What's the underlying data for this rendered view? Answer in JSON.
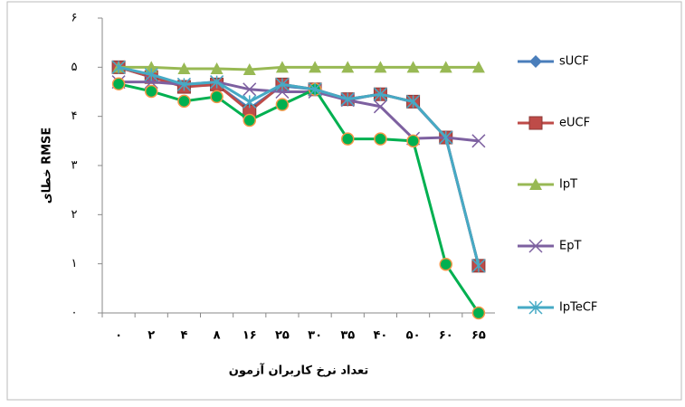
{
  "chart_data": {
    "type": "line",
    "ylabel": "خطای RMSE",
    "xlabel": "تعداد نرخ کاربران آزمون",
    "categories": [
      "۰",
      "۲",
      "۴",
      "۸",
      "۱۶",
      "۲۵",
      "۳۰",
      "۳۵",
      "۴۰",
      "۵۰",
      "۶۰",
      "۶۵"
    ],
    "ylim": [
      0,
      6
    ],
    "yticks": [
      {
        "value": 0,
        "label": "۰"
      },
      {
        "value": 1,
        "label": "۱"
      },
      {
        "value": 2,
        "label": "۲"
      },
      {
        "value": 3,
        "label": "۳"
      },
      {
        "value": 4,
        "label": "۴"
      },
      {
        "value": 5,
        "label": "۵"
      },
      {
        "value": 6,
        "label": "۶"
      }
    ],
    "series": [
      {
        "name": "sUCF",
        "color": "#4a7ebb",
        "marker": "diamond",
        "values": [
          5.0,
          4.8,
          4.62,
          4.64,
          4.16,
          4.62,
          4.55,
          4.33,
          4.46,
          4.29,
          3.57,
          0.96
        ]
      },
      {
        "name": "eUCF",
        "color": "#be4b48",
        "marker": "square",
        "values": [
          5.0,
          4.8,
          4.6,
          4.65,
          4.1,
          4.65,
          4.55,
          4.35,
          4.45,
          4.3,
          3.57,
          0.96
        ]
      },
      {
        "name": "IpT",
        "color": "#98b954",
        "marker": "triangle",
        "values": [
          5.0,
          5.0,
          4.97,
          4.97,
          4.95,
          5.0,
          5.0,
          5.0,
          5.0,
          5.0,
          5.0,
          5.0
        ]
      },
      {
        "name": "EpT",
        "color": "#7d60a0",
        "marker": "cross",
        "values": [
          4.7,
          4.7,
          4.65,
          4.7,
          4.55,
          4.5,
          4.5,
          4.33,
          4.2,
          3.55,
          3.57,
          3.5
        ]
      },
      {
        "color": "#00b050",
        "marker": "circle",
        "values": [
          4.66,
          4.51,
          4.31,
          4.4,
          3.92,
          4.24,
          4.55,
          3.54,
          3.54,
          3.5,
          0.99,
          0
        ]
      },
      {
        "name": "IpTeCF",
        "color": "#46aac5",
        "marker": "star",
        "values": [
          5.0,
          4.85,
          4.65,
          4.7,
          4.3,
          4.65,
          4.55,
          4.35,
          4.45,
          4.3,
          3.57,
          0.96
        ]
      }
    ]
  }
}
